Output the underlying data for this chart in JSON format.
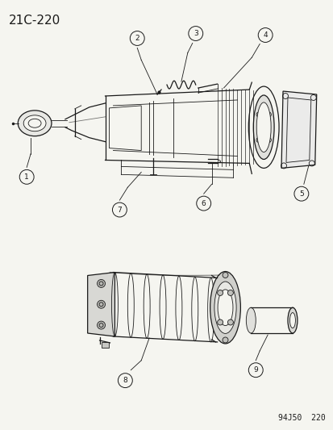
{
  "page_id": "21C-220",
  "ref_number": "94J50  220",
  "background_color": "#f5f5f0",
  "line_color": "#1a1a1a",
  "figure_size": [
    4.14,
    5.33
  ],
  "dpi": 100,
  "label_fontsize": 7.0,
  "page_id_fontsize": 11,
  "ref_fontsize": 7
}
